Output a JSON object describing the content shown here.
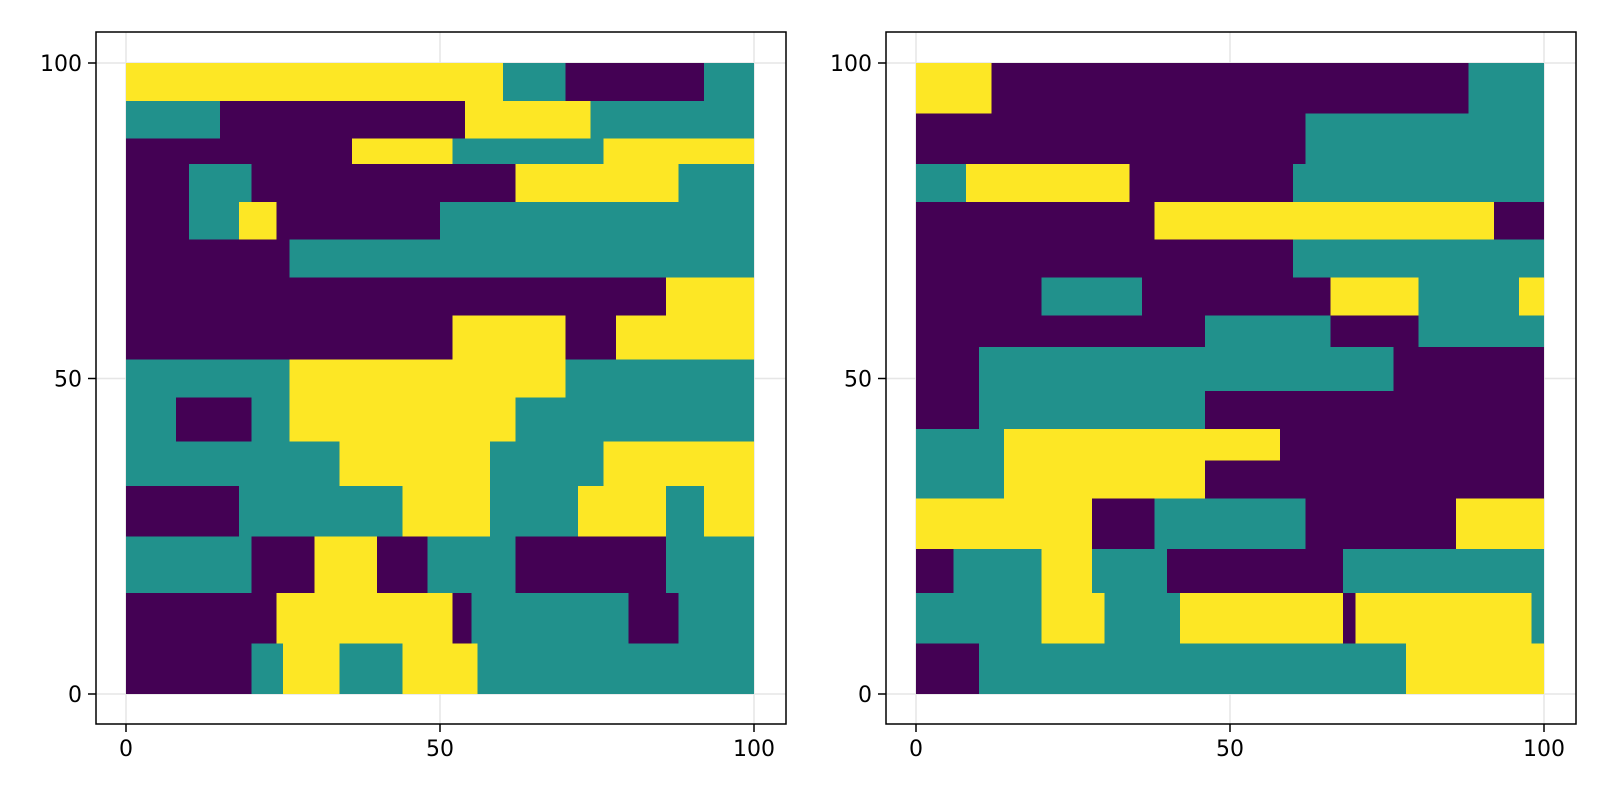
{
  "colors": {
    "category_0": "#440154",
    "category_1": "#21918c",
    "category_2": "#fde725",
    "grid": "#e6e6e6",
    "frame": "#000000",
    "background": "#ffffff"
  },
  "chart_data": [
    {
      "type": "heatmap",
      "title": "",
      "xlabel": "",
      "ylabel": "",
      "xlim": [
        0,
        100
      ],
      "ylim": [
        0,
        100
      ],
      "grid": true,
      "categories": [
        0,
        1,
        2
      ],
      "xticks": [
        {
          "value": 0,
          "label": "0"
        },
        {
          "value": 50,
          "label": "50"
        },
        {
          "value": 100,
          "label": "100"
        }
      ],
      "yticks": [
        {
          "value": 0,
          "label": "0"
        },
        {
          "value": 50,
          "label": "50"
        },
        {
          "value": 100,
          "label": "100"
        }
      ],
      "rows": [
        {
          "y": [
            0,
            8
          ],
          "bands": [
            [
              0,
              100,
              1
            ],
            [
              0,
              20,
              0
            ],
            [
              25,
              34,
              2
            ],
            [
              44,
              56,
              2
            ],
            [
              68,
              82,
              1
            ]
          ]
        },
        {
          "y": [
            8,
            16
          ],
          "bands": [
            [
              0,
              100,
              0
            ],
            [
              24,
              40,
              2
            ],
            [
              40,
              52,
              2
            ],
            [
              55,
              80,
              1
            ],
            [
              88,
              100,
              1
            ]
          ]
        },
        {
          "y": [
            16,
            25
          ],
          "bands": [
            [
              0,
              100,
              0
            ],
            [
              0,
              20,
              1
            ],
            [
              30,
              40,
              2
            ],
            [
              48,
              62,
              1
            ],
            [
              62,
              86,
              0
            ],
            [
              86,
              100,
              1
            ]
          ]
        },
        {
          "y": [
            25,
            33
          ],
          "bands": [
            [
              0,
              100,
              0
            ],
            [
              18,
              32,
              1
            ],
            [
              32,
              62,
              1
            ],
            [
              44,
              58,
              2
            ],
            [
              62,
              100,
              1
            ],
            [
              72,
              86,
              2
            ],
            [
              92,
              100,
              2
            ]
          ]
        },
        {
          "y": [
            33,
            40
          ],
          "bands": [
            [
              0,
              100,
              1
            ],
            [
              34,
              58,
              2
            ],
            [
              58,
              76,
              1
            ],
            [
              76,
              100,
              2
            ]
          ]
        },
        {
          "y": [
            40,
            47
          ],
          "bands": [
            [
              0,
              100,
              1
            ],
            [
              8,
              20,
              0
            ],
            [
              26,
              62,
              2
            ],
            [
              40,
              56,
              2
            ],
            [
              68,
              100,
              1
            ]
          ]
        },
        {
          "y": [
            47,
            53
          ],
          "bands": [
            [
              0,
              100,
              0
            ],
            [
              0,
              40,
              1
            ],
            [
              26,
              70,
              2
            ],
            [
              70,
              100,
              1
            ]
          ]
        },
        {
          "y": [
            53,
            60
          ],
          "bands": [
            [
              0,
              100,
              0
            ],
            [
              52,
              70,
              2
            ],
            [
              78,
              100,
              2
            ]
          ]
        },
        {
          "y": [
            60,
            66
          ],
          "bands": [
            [
              0,
              100,
              0
            ],
            [
              0,
              100,
              0
            ],
            [
              50,
              78,
              0
            ],
            [
              86,
              100,
              2
            ]
          ]
        },
        {
          "y": [
            66,
            72
          ],
          "bands": [
            [
              0,
              100,
              0
            ],
            [
              26,
              80,
              1
            ],
            [
              80,
              100,
              1
            ]
          ]
        },
        {
          "y": [
            72,
            78
          ],
          "bands": [
            [
              0,
              100,
              0
            ],
            [
              10,
              24,
              1
            ],
            [
              50,
              100,
              1
            ],
            [
              18,
              24,
              2
            ]
          ]
        },
        {
          "y": [
            78,
            84
          ],
          "bands": [
            [
              0,
              100,
              0
            ],
            [
              10,
              20,
              1
            ],
            [
              62,
              88,
              2
            ],
            [
              88,
              100,
              1
            ]
          ]
        },
        {
          "y": [
            84,
            88
          ],
          "bands": [
            [
              0,
              100,
              0
            ],
            [
              36,
              52,
              2
            ],
            [
              52,
              76,
              1
            ],
            [
              76,
              100,
              2
            ]
          ]
        },
        {
          "y": [
            88,
            94
          ],
          "bands": [
            [
              0,
              100,
              1
            ],
            [
              0,
              15,
              1
            ],
            [
              15,
              88,
              0
            ],
            [
              54,
              74,
              2
            ],
            [
              74,
              92,
              1
            ]
          ]
        },
        {
          "y": [
            94,
            100
          ],
          "bands": [
            [
              0,
              100,
              2
            ],
            [
              0,
              15,
              2
            ],
            [
              15,
              60,
              2
            ],
            [
              60,
              70,
              1
            ],
            [
              70,
              100,
              0
            ],
            [
              92,
              100,
              1
            ]
          ]
        }
      ]
    },
    {
      "type": "heatmap",
      "title": "",
      "xlabel": "",
      "ylabel": "",
      "xlim": [
        0,
        100
      ],
      "ylim": [
        0,
        100
      ],
      "grid": true,
      "categories": [
        0,
        1,
        2
      ],
      "xticks": [
        {
          "value": 0,
          "label": "0"
        },
        {
          "value": 50,
          "label": "50"
        },
        {
          "value": 100,
          "label": "100"
        }
      ],
      "yticks": [
        {
          "value": 0,
          "label": "0"
        },
        {
          "value": 50,
          "label": "50"
        },
        {
          "value": 100,
          "label": "100"
        }
      ],
      "rows": [
        {
          "y": [
            0,
            8
          ],
          "bands": [
            [
              0,
              100,
              1
            ],
            [
              0,
              10,
              0
            ],
            [
              78,
              100,
              2
            ],
            [
              88,
              100,
              2
            ]
          ]
        },
        {
          "y": [
            8,
            16
          ],
          "bands": [
            [
              0,
              100,
              1
            ],
            [
              0,
              20,
              1
            ],
            [
              20,
              30,
              2
            ],
            [
              42,
              70,
              2
            ],
            [
              68,
              80,
              0
            ],
            [
              70,
              98,
              2
            ],
            [
              98,
              100,
              1
            ]
          ]
        },
        {
          "y": [
            16,
            23
          ],
          "bands": [
            [
              0,
              100,
              1
            ],
            [
              0,
              6,
              0
            ],
            [
              20,
              28,
              2
            ],
            [
              40,
              68,
              0
            ],
            [
              68,
              100,
              1
            ]
          ]
        },
        {
          "y": [
            23,
            31
          ],
          "bands": [
            [
              0,
              100,
              0
            ],
            [
              0,
              28,
              2
            ],
            [
              28,
              100,
              0
            ],
            [
              38,
              62,
              1
            ],
            [
              86,
              100,
              2
            ]
          ]
        },
        {
          "y": [
            31,
            37
          ],
          "bands": [
            [
              0,
              100,
              0
            ],
            [
              0,
              14,
              1
            ],
            [
              14,
              46,
              2
            ],
            [
              46,
              100,
              0
            ]
          ]
        },
        {
          "y": [
            37,
            42
          ],
          "bands": [
            [
              0,
              100,
              1
            ],
            [
              14,
              58,
              2
            ],
            [
              58,
              100,
              0
            ]
          ]
        },
        {
          "y": [
            42,
            48
          ],
          "bands": [
            [
              0,
              100,
              0
            ],
            [
              10,
              46,
              1
            ],
            [
              46,
              100,
              0
            ]
          ]
        },
        {
          "y": [
            48,
            55
          ],
          "bands": [
            [
              0,
              100,
              0
            ],
            [
              10,
              60,
              1
            ],
            [
              46,
              100,
              1
            ],
            [
              76,
              100,
              0
            ]
          ]
        },
        {
          "y": [
            55,
            60
          ],
          "bands": [
            [
              0,
              100,
              0
            ],
            [
              46,
              100,
              1
            ],
            [
              66,
              80,
              0
            ]
          ]
        },
        {
          "y": [
            60,
            66
          ],
          "bands": [
            [
              0,
              100,
              0
            ],
            [
              20,
              36,
              1
            ],
            [
              66,
              80,
              2
            ],
            [
              80,
              100,
              1
            ],
            [
              96,
              100,
              2
            ]
          ]
        },
        {
          "y": [
            66,
            72
          ],
          "bands": [
            [
              0,
              100,
              0
            ],
            [
              40,
              60,
              0
            ],
            [
              60,
              80,
              1
            ],
            [
              80,
              100,
              1
            ]
          ]
        },
        {
          "y": [
            72,
            78
          ],
          "bands": [
            [
              0,
              100,
              0
            ],
            [
              38,
              56,
              1
            ],
            [
              38,
              56,
              2
            ],
            [
              56,
              84,
              2
            ],
            [
              84,
              92,
              2
            ],
            [
              92,
              100,
              0
            ]
          ]
        },
        {
          "y": [
            78,
            84
          ],
          "bands": [
            [
              0,
              100,
              0
            ],
            [
              0,
              8,
              1
            ],
            [
              8,
              34,
              2
            ],
            [
              60,
              100,
              1
            ]
          ]
        },
        {
          "y": [
            84,
            92
          ],
          "bands": [
            [
              0,
              100,
              0
            ],
            [
              62,
              100,
              1
            ]
          ]
        },
        {
          "y": [
            92,
            100
          ],
          "bands": [
            [
              0,
              100,
              0
            ],
            [
              0,
              12,
              2
            ],
            [
              88,
              100,
              1
            ]
          ]
        }
      ]
    }
  ]
}
